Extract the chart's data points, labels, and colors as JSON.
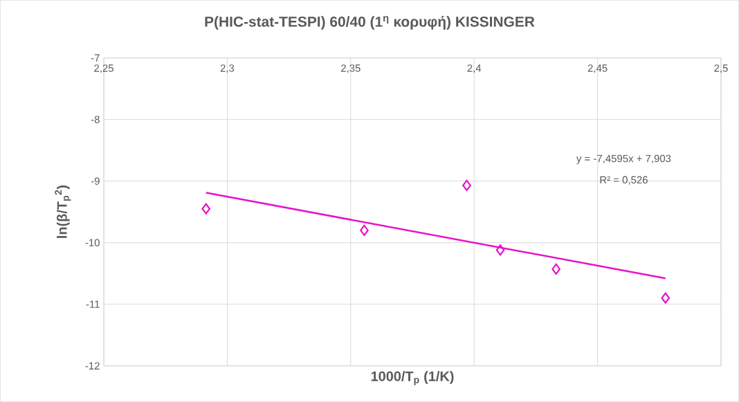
{
  "chart_data": {
    "type": "scatter",
    "title": "P(HIC-stat-TESPI) 60/40 (1$^{η}$ κορυφή) KISSINGER",
    "xlabel": "1000/T$_{p}$ (1/K)",
    "ylabel": "ln(β/T$_{p}$$^{2}$)",
    "series": [
      {
        "color": "#e612cc",
        "marker": "diamond",
        "x": [
          2.2914,
          2.3555,
          2.397,
          2.4106,
          2.4332,
          2.4775
        ],
        "values": [
          -9.45,
          -9.8,
          -9.07,
          -10.12,
          -10.43,
          -10.9
        ]
      },
      {
        "type": "line",
        "color": "#e612cc",
        "marker": "none",
        "line_style": "solid",
        "x": [
          2.2914,
          2.4775
        ],
        "values": [
          -9.19,
          -10.58
        ]
      }
    ],
    "xlim": [
      2.25,
      2.5
    ],
    "ylim": [
      -12,
      -7
    ],
    "xticks": [
      {
        "value": 2.25,
        "label": "2,25"
      },
      {
        "value": 2.3,
        "label": "2,3"
      },
      {
        "value": 2.35,
        "label": "2,35"
      },
      {
        "value": 2.4,
        "label": "2,4"
      },
      {
        "value": 2.45,
        "label": "2,45"
      },
      {
        "value": 2.5,
        "label": "2,5"
      }
    ],
    "yticks": [
      -12,
      -11,
      -10,
      -9,
      -8,
      -7
    ],
    "grid": true,
    "annotations": [
      "y = -7,4595x + 7,903",
      "R² = 0,526"
    ]
  }
}
